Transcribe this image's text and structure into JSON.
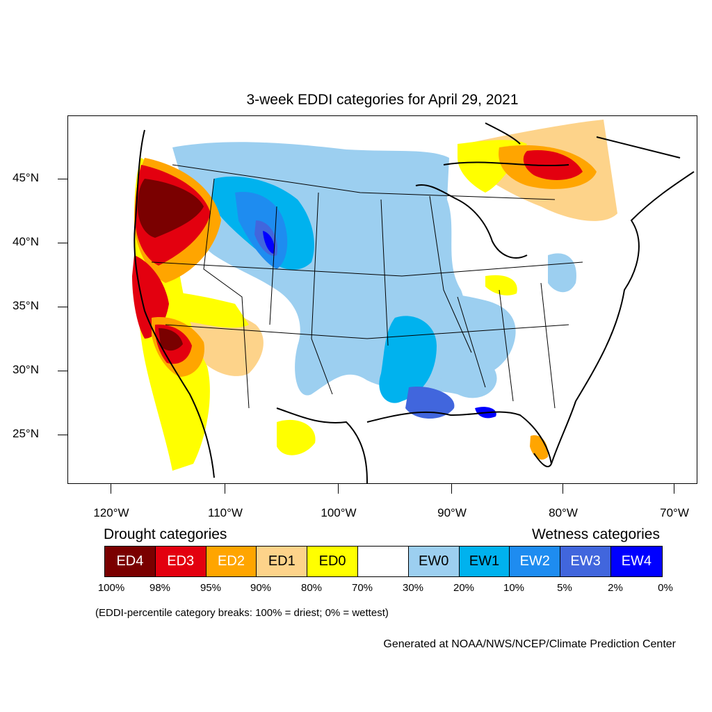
{
  "title": "3-week EDDI categories for April 29, 2021",
  "lat_labels": [
    "45°N",
    "40°N",
    "35°N",
    "30°N",
    "25°N"
  ],
  "lon_labels": [
    "120°W",
    "110°W",
    "100°W",
    "90°W",
    "80°W",
    "70°W"
  ],
  "legend": {
    "drought_heading": "Drought categories",
    "wetness_heading": "Wetness categories",
    "categories": [
      {
        "label": "ED4",
        "color": "#7a0000",
        "text_color": "#ffffff"
      },
      {
        "label": "ED3",
        "color": "#e3000f",
        "text_color": "#ffffff"
      },
      {
        "label": "ED2",
        "color": "#ffa500",
        "text_color": "#ffffff"
      },
      {
        "label": "ED1",
        "color": "#fdd38a",
        "text_color": "#000000"
      },
      {
        "label": "ED0",
        "color": "#ffff00",
        "text_color": "#000000"
      },
      {
        "label": "",
        "color": "#ffffff",
        "text_color": "#000000"
      },
      {
        "label": "EW0",
        "color": "#9ccff0",
        "text_color": "#000000"
      },
      {
        "label": "EW1",
        "color": "#00b2ee",
        "text_color": "#000000"
      },
      {
        "label": "EW2",
        "color": "#1e8cf0",
        "text_color": "#ffffff"
      },
      {
        "label": "EW3",
        "color": "#4166dd",
        "text_color": "#ffffff"
      },
      {
        "label": "EW4",
        "color": "#0000ff",
        "text_color": "#ffffff"
      }
    ],
    "breaks": [
      "100%",
      "98%",
      "95%",
      "90%",
      "80%",
      "70%",
      "30%",
      "20%",
      "10%",
      "5%",
      "2%",
      "0%"
    ],
    "note": "(EDDI-percentile category breaks: 100% = driest; 0% = wettest)"
  },
  "credit": "Generated at NOAA/NWS/NCEP/Climate Prediction Center"
}
